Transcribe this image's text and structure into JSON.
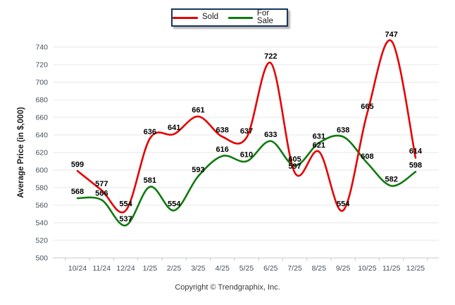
{
  "legend": {
    "items": [
      {
        "label": "Sold",
        "color": "#e60000"
      },
      {
        "label": "For Sale",
        "color": "#0e7a0e"
      }
    ]
  },
  "chart_data": {
    "type": "line",
    "title": "",
    "ylabel": "Average Price (in $,000)",
    "xlabel": "",
    "categories": [
      "10/24",
      "11/24",
      "12/24",
      "1/25",
      "2/25",
      "3/25",
      "4/25",
      "5/25",
      "6/25",
      "7/25",
      "8/25",
      "9/25",
      "10/25",
      "11/25",
      "12/25"
    ],
    "series": [
      {
        "name": "Sold",
        "color": "#e60000",
        "values": [
          599,
          577,
          554,
          636,
          641,
          661,
          638,
          637,
          722,
          597,
          621,
          554,
          665,
          747,
          614
        ]
      },
      {
        "name": "For Sale",
        "color": "#0e7a0e",
        "values": [
          568,
          566,
          537,
          581,
          554,
          593,
          616,
          610,
          633,
          605,
          631,
          638,
          608,
          582,
          598
        ]
      }
    ],
    "ylim": [
      500,
      740
    ],
    "ytick_step": 20,
    "grid": "horizontal",
    "gridline_color": "#e7e7e7",
    "axis_line_color": "#c9c9c9",
    "axis_label_color": "#44505c",
    "data_label_color": "#000000",
    "legend_position": "top-center",
    "smooth": true,
    "data_labels": true
  },
  "footer": {
    "copyright": "Copyright © Trendgraphix, Inc."
  }
}
